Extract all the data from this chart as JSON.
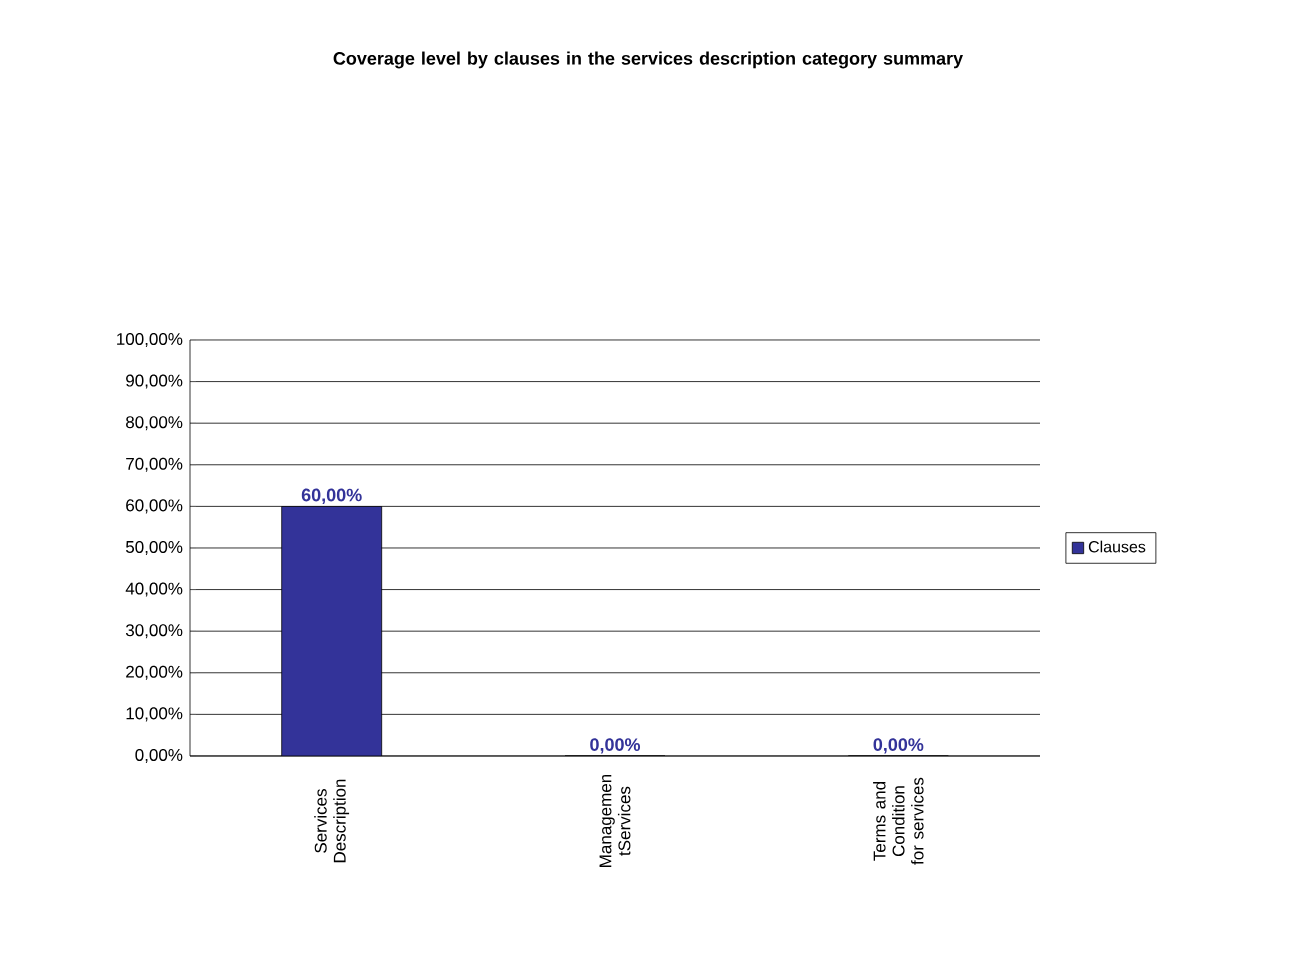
{
  "chart_data": {
    "type": "bar",
    "title": "Coverage level by clauses in the services description category summary",
    "categories": [
      "Services Description",
      "Managemen tServices",
      "Terms and Condition for services"
    ],
    "series": [
      {
        "name": "Clauses",
        "color": "#333399",
        "values": [
          60,
          0,
          0
        ],
        "value_labels": [
          "60,00%",
          "0,00%",
          "0,00%"
        ]
      }
    ],
    "ylim": [
      0,
      100
    ],
    "yticks": [
      {
        "value": 0,
        "label": "0,00%"
      },
      {
        "value": 10,
        "label": "10,00%"
      },
      {
        "value": 20,
        "label": "20,00%"
      },
      {
        "value": 30,
        "label": "30,00%"
      },
      {
        "value": 40,
        "label": "40,00%"
      },
      {
        "value": 50,
        "label": "50,00%"
      },
      {
        "value": 60,
        "label": "60,00%"
      },
      {
        "value": 70,
        "label": "70,00%"
      },
      {
        "value": 80,
        "label": "80,00%"
      },
      {
        "value": 90,
        "label": "90,00%"
      },
      {
        "value": 100,
        "label": "100,00%"
      }
    ],
    "grid": "y",
    "legend": "right"
  }
}
